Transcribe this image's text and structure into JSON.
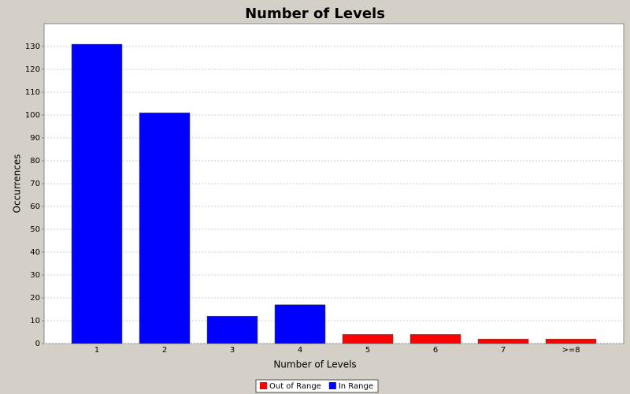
{
  "chart_data": {
    "type": "bar",
    "title": "Number of Levels",
    "x_label": "Number of Levels",
    "y_label": "Occurrences",
    "categories": [
      "1",
      "2",
      "3",
      "4",
      "5",
      "6",
      "7",
      ">=8"
    ],
    "series": [
      {
        "name": "Out of Range",
        "color": "#ff0000",
        "values": [
          null,
          null,
          null,
          null,
          4,
          4,
          2,
          2
        ]
      },
      {
        "name": "In Range",
        "color": "#0000ff",
        "values": [
          131,
          101,
          12,
          17,
          null,
          null,
          null,
          null
        ]
      }
    ],
    "ylim": [
      0,
      140
    ],
    "yticks": [
      0,
      10,
      20,
      30,
      40,
      50,
      60,
      70,
      80,
      90,
      100,
      110,
      120,
      130
    ],
    "grid": true,
    "legend": "bottom"
  }
}
